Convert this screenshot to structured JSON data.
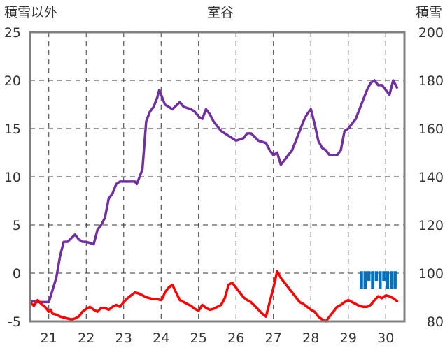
{
  "chart_data": {
    "type": "line",
    "title": "室谷",
    "ylabel": "積雪以外",
    "y2label": "積雪",
    "ylim": [
      -5,
      25
    ],
    "y2lim": [
      80,
      200
    ],
    "yticks": [
      "25",
      "20",
      "15",
      "10",
      "5",
      "0",
      "-5"
    ],
    "y2ticks": [
      "200",
      "180",
      "160",
      "140",
      "120",
      "100",
      "80"
    ],
    "x_day_range": [
      20.5,
      30.5
    ],
    "xticks": [
      "21",
      "22",
      "23",
      "24",
      "25",
      "26",
      "27",
      "28",
      "29",
      "30"
    ],
    "grid": true,
    "colors": {
      "snow_depth": "#7030a0",
      "temperature": "#ff0000",
      "precipitation": "#0070c0",
      "frame": "#808080"
    },
    "series": [
      {
        "axis": "right",
        "x": [
          20.5,
          20.7,
          20.85,
          21.0,
          21.1,
          21.2,
          21.3,
          21.4,
          21.5,
          21.7,
          21.8,
          21.9,
          22.0,
          22.2,
          22.3,
          22.4,
          22.5,
          22.6,
          22.7,
          22.8,
          22.9,
          23.0,
          23.3,
          23.35,
          23.5,
          23.55,
          23.6,
          23.7,
          23.8,
          23.9,
          23.95,
          24.0,
          24.1,
          24.2,
          24.3,
          24.5,
          24.6,
          24.8,
          24.9,
          25.0,
          25.1,
          25.2,
          25.3,
          25.4,
          25.6,
          25.8,
          26.0,
          26.2,
          26.3,
          26.4,
          26.6,
          26.8,
          26.9,
          27.0,
          27.1,
          27.2,
          27.3,
          27.5,
          27.6,
          27.8,
          27.9,
          28.0,
          28.1,
          28.2,
          28.3,
          28.4,
          28.5,
          28.6,
          28.7,
          28.8,
          28.9,
          29.0,
          29.2,
          29.4,
          29.5,
          29.6,
          29.7,
          29.8,
          29.9,
          30.0,
          30.1,
          30.2,
          30.3
        ],
        "y": [
          88.5,
          88,
          88,
          88,
          93,
          98,
          107,
          113,
          113,
          116,
          114,
          113,
          113,
          112,
          118,
          120,
          123,
          131,
          133,
          137,
          138,
          138,
          138,
          137,
          143,
          153,
          163,
          167,
          169,
          173,
          176,
          174,
          170,
          169,
          168,
          171,
          169,
          168,
          167,
          165,
          164,
          168,
          166,
          163,
          159,
          157,
          155,
          156,
          158,
          158,
          155,
          154,
          151,
          149,
          150,
          145,
          147,
          151,
          155,
          163,
          166,
          168,
          162,
          155,
          152,
          151,
          149,
          149,
          149,
          151,
          159,
          160,
          164,
          172,
          176,
          179,
          180,
          178,
          178,
          176,
          174,
          180,
          177
        ]
      },
      {
        "axis": "left",
        "x": [
          20.5,
          20.6,
          20.7,
          20.8,
          20.9,
          21.0,
          21.05,
          21.1,
          21.2,
          21.3,
          21.4,
          21.5,
          21.6,
          21.7,
          21.8,
          21.9,
          22.0,
          22.1,
          22.2,
          22.3,
          22.4,
          22.5,
          22.6,
          22.7,
          22.8,
          22.9,
          23.0,
          23.1,
          23.2,
          23.3,
          23.4,
          23.5,
          23.6,
          23.7,
          23.8,
          23.9,
          24.0,
          24.05,
          24.1,
          24.2,
          24.3,
          24.4,
          24.5,
          24.6,
          24.7,
          24.8,
          24.9,
          25.0,
          25.1,
          25.2,
          25.3,
          25.4,
          25.5,
          25.6,
          25.7,
          25.8,
          25.9,
          26.0,
          26.1,
          26.2,
          26.3,
          26.4,
          26.5,
          26.6,
          26.7,
          26.8,
          26.9,
          27.0,
          27.1,
          27.2,
          27.3,
          27.4,
          27.5,
          27.6,
          27.7,
          27.8,
          27.9,
          28.0,
          28.1,
          28.2,
          28.3,
          28.4,
          28.5,
          28.6,
          28.7,
          28.8,
          28.9,
          29.0,
          29.1,
          29.2,
          29.3,
          29.4,
          29.5,
          29.6,
          29.7,
          29.8,
          29.9,
          30.0,
          30.1,
          30.2,
          30.3
        ],
        "y": [
          -3.0,
          -3.4,
          -2.8,
          -3.2,
          -3.5,
          -4.0,
          -3.8,
          -4.2,
          -4.3,
          -4.5,
          -4.6,
          -4.7,
          -4.8,
          -4.7,
          -4.5,
          -4.0,
          -3.7,
          -3.5,
          -3.8,
          -4.0,
          -3.6,
          -3.6,
          -3.8,
          -3.5,
          -3.3,
          -3.5,
          -3.0,
          -2.6,
          -2.3,
          -2.0,
          -2.1,
          -2.3,
          -2.5,
          -2.6,
          -2.7,
          -2.7,
          -2.8,
          -2.5,
          -2.0,
          -1.5,
          -1.2,
          -2.0,
          -2.8,
          -3.0,
          -3.2,
          -3.4,
          -3.7,
          -3.9,
          -3.3,
          -3.6,
          -3.8,
          -3.7,
          -3.5,
          -3.3,
          -2.6,
          -1.2,
          -1.0,
          -1.5,
          -2.0,
          -2.5,
          -2.8,
          -3.0,
          -3.4,
          -3.8,
          -4.2,
          -4.5,
          -3.0,
          -1.5,
          0.2,
          -0.5,
          -1.0,
          -1.5,
          -2.0,
          -2.5,
          -3.0,
          -3.2,
          -3.5,
          -3.8,
          -4.0,
          -4.5,
          -4.8,
          -5.0,
          -4.5,
          -4.0,
          -3.5,
          -3.3,
          -3.0,
          -2.8,
          -3.0,
          -3.2,
          -3.4,
          -3.5,
          -3.5,
          -3.3,
          -2.8,
          -2.4,
          -2.6,
          -2.3,
          -2.4,
          -2.6,
          -2.9
        ]
      }
    ],
    "bars": {
      "axis": "left",
      "x": [
        29.35,
        29.45,
        29.55,
        29.65,
        29.75,
        29.85,
        29.95,
        30.05,
        30.15,
        30.25
      ],
      "values": [
        1.8,
        1.8,
        1.0,
        1.8,
        1.0,
        1.8,
        1.0,
        1.8,
        1.8,
        1.8
      ]
    }
  }
}
